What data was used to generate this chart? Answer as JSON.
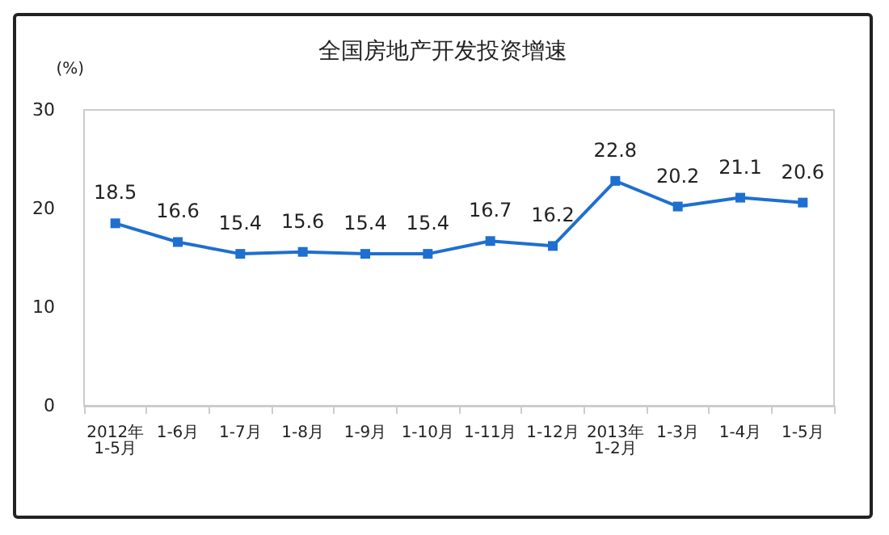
{
  "chart_data": {
    "type": "line",
    "title": "全国房地产开发投资增速",
    "ylabel": "(%)",
    "categories": [
      "2012年\n1-5月",
      "1-6月",
      "1-7月",
      "1-8月",
      "1-9月",
      "1-10月",
      "1-11月",
      "1-12月",
      "2013年\n1-2月",
      "1-3月",
      "1-4月",
      "1-5月"
    ],
    "series": [
      {
        "color": "#1e6fd0",
        "values": [
          18.5,
          16.6,
          15.4,
          15.6,
          15.4,
          15.4,
          16.7,
          16.2,
          22.8,
          20.2,
          21.1,
          20.6
        ]
      }
    ],
    "ylim": [
      0,
      30
    ],
    "yticks": [
      0,
      10,
      20,
      30
    ],
    "grid": false,
    "marker": "square",
    "line_style": "solid",
    "data_labels": true
  }
}
